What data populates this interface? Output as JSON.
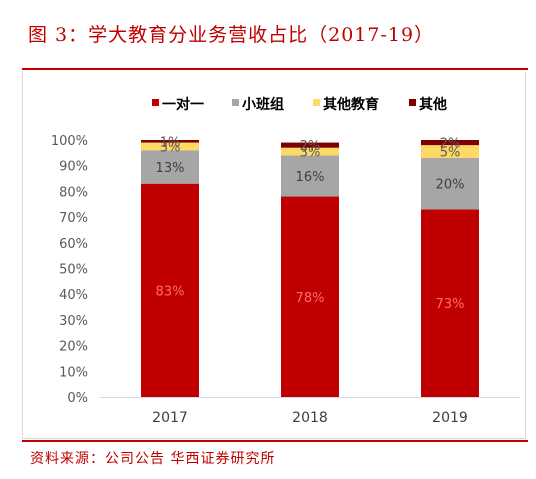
{
  "title": "图 3：学大教育分业务营收占比（2017-19）",
  "source": "资料来源：公司公告 华西证券研究所",
  "chart_data": {
    "type": "bar",
    "stacked": true,
    "categories": [
      "2017",
      "2018",
      "2019"
    ],
    "series": [
      {
        "name": "一对一",
        "color": "#c00000",
        "values": [
          83,
          78,
          73
        ],
        "labels": [
          "83%",
          "78%",
          "73%"
        ],
        "label_color": "#ff6b6b"
      },
      {
        "name": "小班组",
        "color": "#a6a6a6",
        "values": [
          13,
          16,
          20
        ],
        "labels": [
          "13%",
          "16%",
          "20%"
        ],
        "label_color": "#404040"
      },
      {
        "name": "其他教育",
        "color": "#ffd966",
        "values": [
          3,
          3,
          5
        ],
        "labels": [
          "3%",
          "3%",
          "5%"
        ],
        "label_color": "#595959"
      },
      {
        "name": "其他",
        "color": "#7f0000",
        "values": [
          1,
          2,
          2
        ],
        "labels": [
          "1%",
          "2%",
          "2%"
        ],
        "label_color": "#595959"
      }
    ],
    "ylim": [
      0,
      100
    ],
    "yticks": [
      "0%",
      "10%",
      "20%",
      "30%",
      "40%",
      "50%",
      "60%",
      "70%",
      "80%",
      "90%",
      "100%"
    ],
    "legend_position": "top-center",
    "grid": false
  }
}
